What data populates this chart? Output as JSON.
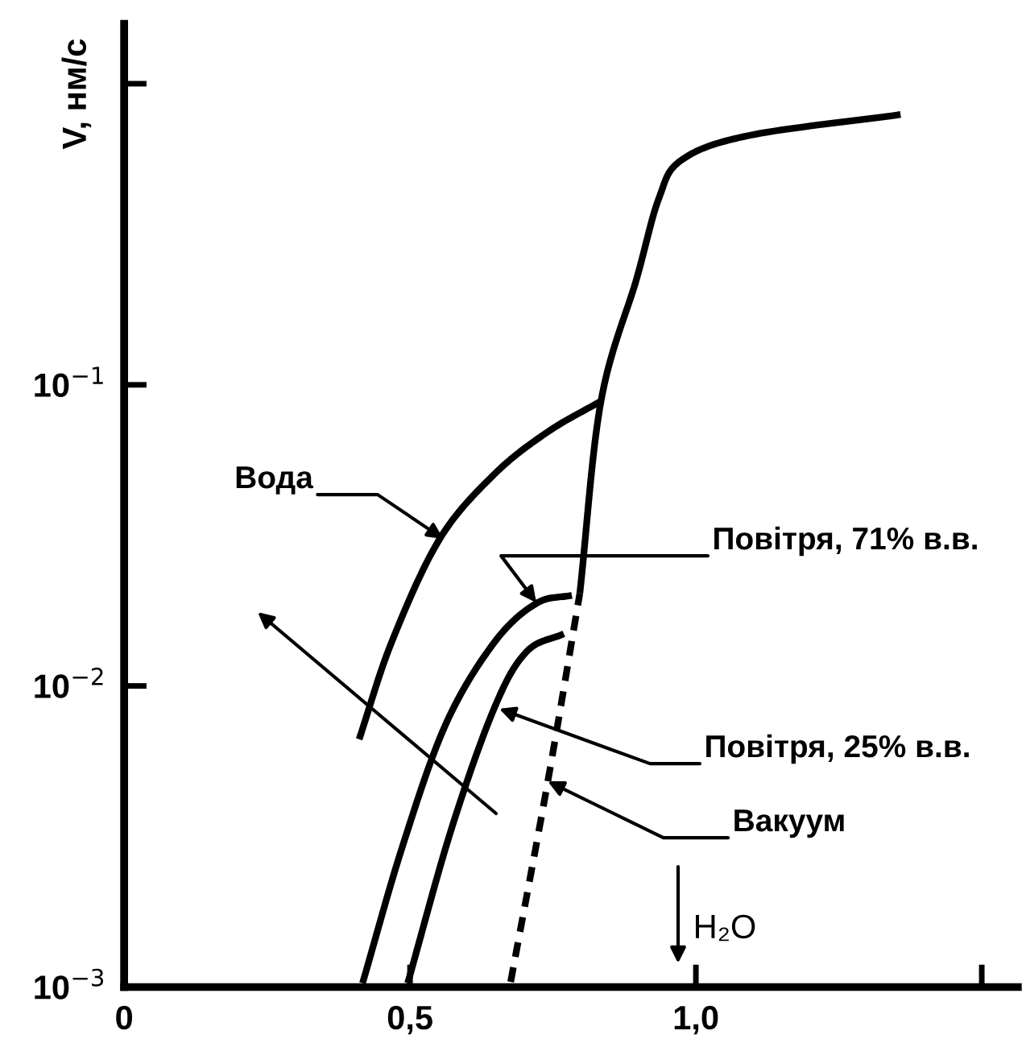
{
  "chart_data": {
    "type": "line",
    "ylabel": "V, нм/с",
    "log": "y",
    "xlim": [
      0,
      1.563
    ],
    "ylim": [
      0.001,
      1.58
    ],
    "xticks": [
      0,
      {
        "value": 0.5,
        "label": "0,5"
      },
      {
        "value": 1.0,
        "label": "1,0"
      },
      {
        "value": 1.5,
        "label": null
      }
    ],
    "yticks": [
      {
        "value": 0.001,
        "label": "10$^{−3}$"
      },
      {
        "value": 0.01,
        "label": "10$^{−2}$"
      },
      {
        "value": 0.1,
        "label": "10$^{−1}$"
      },
      {
        "value": 1,
        "label": null
      }
    ],
    "grid": false,
    "marker": "none",
    "line_style": "solid",
    "series": [
      {
        "color": "#000000",
        "x": [
          0.411,
          0.468,
          0.552,
          0.648,
          0.741,
          0.834
        ],
        "values": [
          0.00665,
          0.014,
          0.0308,
          0.0506,
          0.0698,
          0.0883
        ]
      },
      {
        "color": "#000000",
        "x": [
          0.417,
          0.487,
          0.563,
          0.648,
          0.721,
          0.783
        ],
        "values": [
          0.00103,
          0.00294,
          0.0075,
          0.014,
          0.0188,
          0.02
        ]
      },
      {
        "color": "#000000",
        "x": [
          0.496,
          0.572,
          0.648,
          0.704,
          0.769
        ],
        "values": [
          0.00103,
          0.00333,
          0.0085,
          0.013,
          0.0149
        ]
      },
      {
        "color": "#000000",
        "x": [
          0.797,
          0.834,
          0.896,
          0.935,
          0.975,
          1.093,
          1.358
        ],
        "values": [
          0.0203,
          0.0883,
          0.224,
          0.415,
          0.558,
          0.673,
          0.79
        ]
      },
      {
        "color": "#000000",
        "line_style": "dashed",
        "x": [
          0.676,
          0.741,
          0.797
        ],
        "values": [
          0.00104,
          0.00482,
          0.0203
        ]
      }
    ],
    "annotations": [
      {
        "text": "Вода",
        "x": 0.558,
        "y": 0.0308
      },
      {
        "text": "Повітря, 71% в.в.",
        "x": 0.721,
        "y": 0.0189
      },
      {
        "text": "Повітря, 25% в.в.",
        "x": 0.656,
        "y": 0.0084
      },
      {
        "text": "Вакуум",
        "x": 0.741,
        "y": 0.00482
      },
      "H₂O"
    ]
  }
}
